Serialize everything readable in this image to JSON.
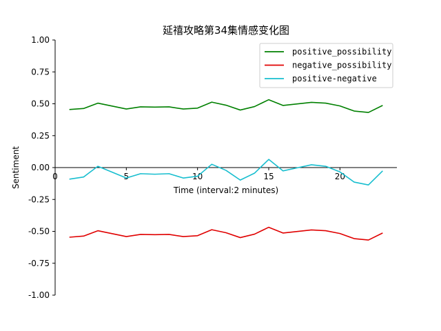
{
  "chart_data": {
    "type": "line",
    "title": "延禧攻略第34集情感变化图",
    "xlabel": "Time (interval:2 minutes)",
    "ylabel": "Sentiment",
    "xlim": [
      0,
      24
    ],
    "ylim": [
      -1.0,
      1.0
    ],
    "x_ticks": [
      "0",
      "5",
      "10",
      "15",
      "20"
    ],
    "y_ticks": [
      "1.00",
      "0.75",
      "0.50",
      "0.25",
      "0.00",
      "-0.25",
      "-0.50",
      "-0.75",
      "-1.00"
    ],
    "x": [
      1,
      2,
      3,
      4,
      5,
      6,
      7,
      8,
      9,
      10,
      11,
      12,
      13,
      14,
      15,
      16,
      17,
      18,
      19,
      20,
      21,
      22,
      23
    ],
    "legend_position": "top-right",
    "grid": false,
    "series": [
      {
        "name": "positive_possibility",
        "color": "#008000",
        "values": [
          0.455,
          0.463,
          0.505,
          0.482,
          0.459,
          0.476,
          0.474,
          0.476,
          0.459,
          0.466,
          0.513,
          0.489,
          0.451,
          0.478,
          0.532,
          0.487,
          0.499,
          0.511,
          0.505,
          0.483,
          0.443,
          0.432,
          0.487
        ]
      },
      {
        "name": "negative_possibility",
        "color": "#e00000",
        "values": [
          -0.546,
          -0.537,
          -0.495,
          -0.518,
          -0.541,
          -0.524,
          -0.526,
          -0.524,
          -0.541,
          -0.534,
          -0.487,
          -0.511,
          -0.549,
          -0.522,
          -0.468,
          -0.513,
          -0.501,
          -0.489,
          -0.495,
          -0.517,
          -0.557,
          -0.568,
          -0.513
        ]
      },
      {
        "name": "positive-negative",
        "color": "#17becf",
        "values": [
          -0.091,
          -0.074,
          0.01,
          -0.036,
          -0.082,
          -0.048,
          -0.052,
          -0.048,
          -0.082,
          -0.068,
          0.026,
          -0.022,
          -0.098,
          -0.044,
          0.064,
          -0.026,
          -0.002,
          0.022,
          0.01,
          -0.034,
          -0.114,
          -0.136,
          -0.026
        ]
      }
    ]
  }
}
